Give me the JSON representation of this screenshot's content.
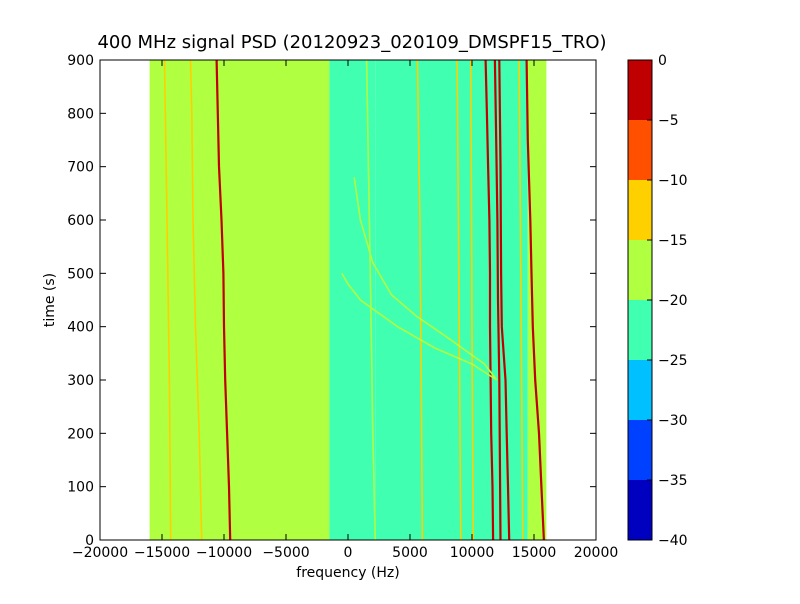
{
  "chart_data": {
    "type": "heatmap",
    "title": "400 MHz signal PSD (20120923_020109_DMSPF15_TRO)",
    "xlabel": "frequency (Hz)",
    "ylabel": "time (s)",
    "xlim": [
      -20000,
      20000
    ],
    "ylim": [
      0,
      900
    ],
    "data_x_extent": [
      -16000,
      16000
    ],
    "x_ticks": [
      {
        "value": -20000,
        "label": "−20000"
      },
      {
        "value": -15000,
        "label": "−15000"
      },
      {
        "value": -10000,
        "label": "−10000"
      },
      {
        "value": -5000,
        "label": "−5000"
      },
      {
        "value": 0,
        "label": "0"
      },
      {
        "value": 5000,
        "label": "5000"
      },
      {
        "value": 10000,
        "label": "10000"
      },
      {
        "value": 15000,
        "label": "15000"
      },
      {
        "value": 20000,
        "label": "20000"
      }
    ],
    "y_ticks": [
      {
        "value": 0,
        "label": "0"
      },
      {
        "value": 100,
        "label": "100"
      },
      {
        "value": 200,
        "label": "200"
      },
      {
        "value": 300,
        "label": "300"
      },
      {
        "value": 400,
        "label": "400"
      },
      {
        "value": 500,
        "label": "500"
      },
      {
        "value": 600,
        "label": "600"
      },
      {
        "value": 700,
        "label": "700"
      },
      {
        "value": 800,
        "label": "800"
      },
      {
        "value": 900,
        "label": "900"
      }
    ],
    "colorbar": {
      "range": [
        -40,
        0
      ],
      "levels": [
        {
          "from": -40,
          "to": -35,
          "color": "#0000c0"
        },
        {
          "from": -35,
          "to": -30,
          "color": "#0040ff"
        },
        {
          "from": -30,
          "to": -25,
          "color": "#00c0ff"
        },
        {
          "from": -25,
          "to": -20,
          "color": "#40ffb0"
        },
        {
          "from": -20,
          "to": -15,
          "color": "#b0ff40"
        },
        {
          "from": -15,
          "to": -10,
          "color": "#ffd000"
        },
        {
          "from": -10,
          "to": -5,
          "color": "#ff5000"
        },
        {
          "from": -5,
          "to": 0,
          "color": "#c00000"
        }
      ],
      "ticks": [
        {
          "value": 0,
          "label": "0"
        },
        {
          "value": -5,
          "label": "−5"
        },
        {
          "value": -10,
          "label": "−10"
        },
        {
          "value": -15,
          "label": "−15"
        },
        {
          "value": -20,
          "label": "−20"
        },
        {
          "value": -25,
          "label": "−25"
        },
        {
          "value": -30,
          "label": "−30"
        },
        {
          "value": -35,
          "label": "−35"
        },
        {
          "value": -40,
          "label": "−40"
        }
      ]
    },
    "background_regions": [
      {
        "x": [
          -16000,
          -1500
        ],
        "level": -17.5
      },
      {
        "x": [
          -1500,
          2200
        ],
        "level": -20
      },
      {
        "x": [
          2200,
          14500
        ],
        "level": -22.5
      },
      {
        "x": [
          14500,
          16000
        ],
        "level": -17.5
      }
    ],
    "traces": [
      {
        "level": -2.5,
        "points": [
          [
            -9500,
            0
          ],
          [
            -9600,
            100
          ],
          [
            -9750,
            200
          ],
          [
            -9900,
            300
          ],
          [
            -10000,
            400
          ],
          [
            -10050,
            500
          ],
          [
            -10200,
            600
          ],
          [
            -10400,
            700
          ],
          [
            -10500,
            800
          ],
          [
            -10600,
            900
          ]
        ]
      },
      {
        "level": -12.5,
        "points": [
          [
            -11800,
            0
          ],
          [
            -12000,
            200
          ],
          [
            -12300,
            400
          ],
          [
            -12500,
            600
          ],
          [
            -12600,
            800
          ],
          [
            -12700,
            900
          ]
        ]
      },
      {
        "level": -12.5,
        "points": [
          [
            -14300,
            0
          ],
          [
            -14400,
            300
          ],
          [
            -14600,
            600
          ],
          [
            -14800,
            900
          ]
        ]
      },
      {
        "level": -2.5,
        "points": [
          [
            11700,
            0
          ],
          [
            11650,
            100
          ],
          [
            11550,
            200
          ],
          [
            11500,
            300
          ],
          [
            11450,
            400
          ],
          [
            11450,
            500
          ],
          [
            11400,
            600
          ],
          [
            11300,
            700
          ],
          [
            11200,
            800
          ],
          [
            11100,
            900
          ]
        ]
      },
      {
        "level": -2.5,
        "points": [
          [
            12300,
            0
          ],
          [
            12250,
            150
          ],
          [
            12200,
            300
          ],
          [
            12100,
            450
          ],
          [
            12050,
            600
          ],
          [
            11950,
            750
          ],
          [
            11850,
            900
          ]
        ]
      },
      {
        "level": -2.5,
        "points": [
          [
            13000,
            0
          ],
          [
            12900,
            100
          ],
          [
            12800,
            200
          ],
          [
            12700,
            300
          ],
          [
            12400,
            400
          ],
          [
            12350,
            500
          ],
          [
            12300,
            700
          ],
          [
            12200,
            900
          ]
        ]
      },
      {
        "level": -2.5,
        "points": [
          [
            15800,
            0
          ],
          [
            15600,
            100
          ],
          [
            15400,
            200
          ],
          [
            15100,
            300
          ],
          [
            14900,
            400
          ],
          [
            14800,
            500
          ],
          [
            14700,
            600
          ],
          [
            14500,
            750
          ],
          [
            14400,
            900
          ]
        ]
      },
      {
        "level": -12.5,
        "points": [
          [
            14100,
            0
          ],
          [
            14000,
            300
          ],
          [
            13900,
            600
          ],
          [
            13800,
            900
          ]
        ]
      },
      {
        "level": -12.5,
        "points": [
          [
            6000,
            0
          ],
          [
            5900,
            300
          ],
          [
            5800,
            600
          ],
          [
            5600,
            900
          ]
        ]
      },
      {
        "level": -12.5,
        "points": [
          [
            9100,
            0
          ],
          [
            9000,
            300
          ],
          [
            8900,
            600
          ],
          [
            8800,
            900
          ]
        ]
      },
      {
        "level": -12.5,
        "points": [
          [
            10100,
            0
          ],
          [
            10000,
            400
          ],
          [
            9900,
            900
          ]
        ]
      },
      {
        "level": -17.5,
        "points": [
          [
            2200,
            0
          ],
          [
            2000,
            200
          ],
          [
            1800,
            500
          ],
          [
            1500,
            900
          ]
        ]
      },
      {
        "level": -17.5,
        "points": [
          [
            12000,
            300
          ],
          [
            11000,
            330
          ],
          [
            8000,
            380
          ],
          [
            5500,
            420
          ],
          [
            3500,
            460
          ],
          [
            2000,
            520
          ],
          [
            1000,
            600
          ],
          [
            500,
            680
          ]
        ]
      },
      {
        "level": -17.5,
        "points": [
          [
            12000,
            300
          ],
          [
            10000,
            330
          ],
          [
            7000,
            360
          ],
          [
            4000,
            400
          ],
          [
            2200,
            430
          ],
          [
            1000,
            450
          ],
          [
            0,
            480
          ],
          [
            -500,
            500
          ]
        ]
      }
    ]
  }
}
